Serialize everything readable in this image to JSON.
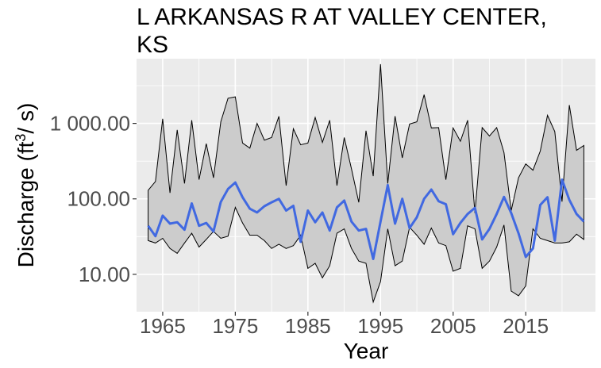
{
  "chart_data": {
    "type": "line",
    "title_lines": [
      "L ARKANSAS R AT VALLEY CENTER,",
      "KS"
    ],
    "xlabel": "Year",
    "ylabel_main": "Discharge (ft",
    "ylabel_sup": "3",
    "ylabel_tail": "/ s)",
    "y_scale": "log",
    "ylim": [
      3.2,
      7200
    ],
    "xlim": [
      1961.4,
      2024.6
    ],
    "x_ticks": [
      {
        "value": 1965,
        "label": "1965"
      },
      {
        "value": 1975,
        "label": "1975"
      },
      {
        "value": 1985,
        "label": "1985"
      },
      {
        "value": 1995,
        "label": "1995"
      },
      {
        "value": 2005,
        "label": "2005"
      },
      {
        "value": 2015,
        "label": "2015"
      }
    ],
    "y_ticks": [
      {
        "value": 10,
        "label": "10.00"
      },
      {
        "value": 100,
        "label": "100.00"
      },
      {
        "value": 1000,
        "label": "1 000.00"
      }
    ],
    "grid": true,
    "legend": "none",
    "colors": {
      "panel": "#ebebeb",
      "grid": "#ffffff",
      "band": "#cccccc",
      "band_edge": "#000000",
      "series": "#4169e1"
    },
    "years": [
      1963,
      1964,
      1965,
      1966,
      1967,
      1968,
      1969,
      1970,
      1971,
      1972,
      1973,
      1974,
      1975,
      1976,
      1977,
      1978,
      1979,
      1980,
      1981,
      1982,
      1983,
      1984,
      1985,
      1986,
      1987,
      1988,
      1989,
      1990,
      1991,
      1992,
      1993,
      1994,
      1995,
      1996,
      1997,
      1998,
      1999,
      2000,
      2001,
      2002,
      2003,
      2004,
      2005,
      2006,
      2007,
      2008,
      2009,
      2010,
      2011,
      2012,
      2013,
      2014,
      2015,
      2016,
      2017,
      2018,
      2019,
      2020,
      2021,
      2022,
      2023
    ],
    "series": [
      {
        "role": "max",
        "values": [
          130,
          170,
          1150,
          120,
          820,
          160,
          1100,
          180,
          540,
          190,
          1050,
          2150,
          2250,
          550,
          470,
          1000,
          600,
          650,
          1240,
          150,
          850,
          520,
          550,
          1200,
          560,
          1100,
          150,
          650,
          250,
          90,
          800,
          200,
          6100,
          160,
          1250,
          350,
          980,
          1050,
          2400,
          870,
          880,
          180,
          870,
          580,
          1100,
          65,
          880,
          680,
          880,
          410,
          70,
          190,
          290,
          240,
          430,
          1280,
          780,
          92,
          1750,
          440,
          510
        ]
      },
      {
        "role": "min",
        "values": [
          28,
          26,
          30,
          22,
          19,
          26,
          35,
          23,
          29,
          37,
          30,
          32,
          77,
          48,
          33,
          33,
          28,
          22,
          25,
          22,
          24,
          33,
          12,
          14,
          9,
          13,
          35,
          40,
          22,
          15,
          14,
          4.3,
          8,
          40,
          13,
          15,
          42,
          33,
          25,
          41,
          26,
          24,
          11,
          12,
          44,
          40,
          12,
          15,
          23,
          45,
          6,
          5.2,
          7,
          40,
          30,
          28,
          26,
          26,
          27,
          34,
          29
        ]
      },
      {
        "role": "median",
        "values": [
          44,
          32,
          60,
          47,
          49,
          39,
          87,
          44,
          48,
          37,
          91,
          135,
          165,
          105,
          74,
          66,
          80,
          90,
          100,
          70,
          81,
          27,
          70,
          49,
          66,
          38,
          77,
          95,
          50,
          38,
          40,
          16,
          50,
          152,
          47,
          100,
          41,
          57,
          100,
          133,
          93,
          85,
          34,
          48,
          63,
          76,
          29,
          40,
          63,
          106,
          65,
          35,
          17,
          22,
          83,
          105,
          28,
          180,
          97,
          63,
          50
        ]
      }
    ]
  }
}
